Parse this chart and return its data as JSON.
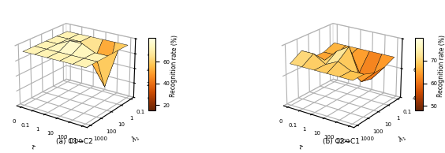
{
  "tau_labels": [
    "0",
    "0.1",
    "1",
    "10",
    "100",
    "1000"
  ],
  "lambda_labels": [
    "1000",
    "100",
    "10",
    "1",
    "0.1"
  ],
  "Z1": [
    [
      72,
      72,
      72,
      72,
      72,
      72
    ],
    [
      72,
      72,
      72,
      72,
      72,
      72
    ],
    [
      72,
      72,
      80,
      80,
      72,
      72
    ],
    [
      72,
      72,
      72,
      45,
      19,
      72
    ],
    [
      72,
      72,
      72,
      72,
      72,
      72
    ]
  ],
  "Z2": [
    [
      68,
      68,
      68,
      68,
      68,
      68
    ],
    [
      73,
      73,
      68,
      72,
      68,
      68
    ],
    [
      65,
      65,
      73,
      78,
      57,
      65
    ],
    [
      65,
      65,
      65,
      57,
      55,
      65
    ],
    [
      68,
      68,
      68,
      68,
      68,
      68
    ]
  ],
  "title1": "(a) C1→C2",
  "title2": "(b) C2→C1",
  "zlabel": "Recognition rate (%)",
  "xlabel_lambda": "$\\lambda_1$",
  "xlabel_tau": "$\\tau$",
  "zlim1": [
    0,
    80
  ],
  "zlim2": [
    40,
    80
  ],
  "zticks1": [
    0,
    20,
    40,
    60,
    80
  ],
  "zticks2": [
    40,
    60,
    80
  ],
  "cbar_ticks1": [
    20,
    40,
    60
  ],
  "cbar_ticks2": [
    50,
    60,
    70
  ],
  "cmap_vmin1": 15,
  "cmap_vmax1": 82,
  "cmap_vmin2": 48,
  "cmap_vmax2": 80,
  "elev": 22,
  "azim1": -55,
  "azim2": -55
}
